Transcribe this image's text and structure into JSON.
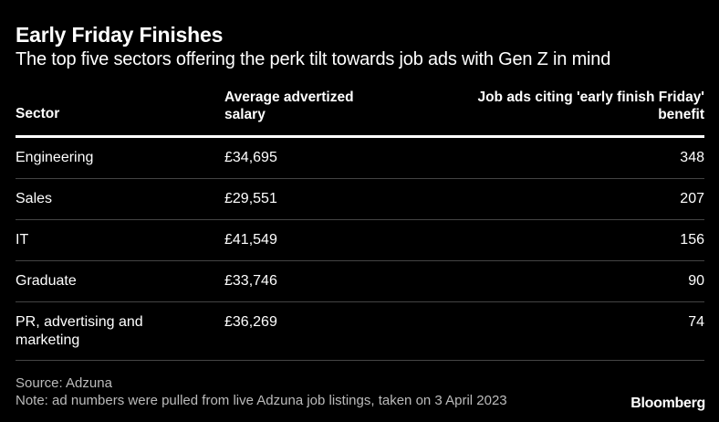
{
  "title": "Early Friday Finishes",
  "subtitle": "The top five sectors offering the perk tilt towards job ads with Gen Z in mind",
  "chart_data": {
    "type": "table",
    "columns": [
      "Sector",
      "Average advertized salary",
      "Job ads citing 'early finish Friday' benefit"
    ],
    "rows": [
      {
        "sector": "Engineering",
        "salary": "£34,695",
        "ads": "348"
      },
      {
        "sector": "Sales",
        "salary": "£29,551",
        "ads": "207"
      },
      {
        "sector": "IT",
        "salary": "£41,549",
        "ads": "156"
      },
      {
        "sector": "Graduate",
        "salary": "£33,746",
        "ads": "90"
      },
      {
        "sector": "PR, advertising and marketing",
        "salary": "£36,269",
        "ads": "74"
      }
    ]
  },
  "source": "Source: Adzuna",
  "note": "Note: ad numbers were pulled from live Adzuna job listings, taken on 3 April 2023",
  "logo": "Bloomberg",
  "colors": {
    "background": "#000000",
    "text": "#ffffff",
    "muted_text": "#bbbbbb",
    "divider": "#444444"
  }
}
